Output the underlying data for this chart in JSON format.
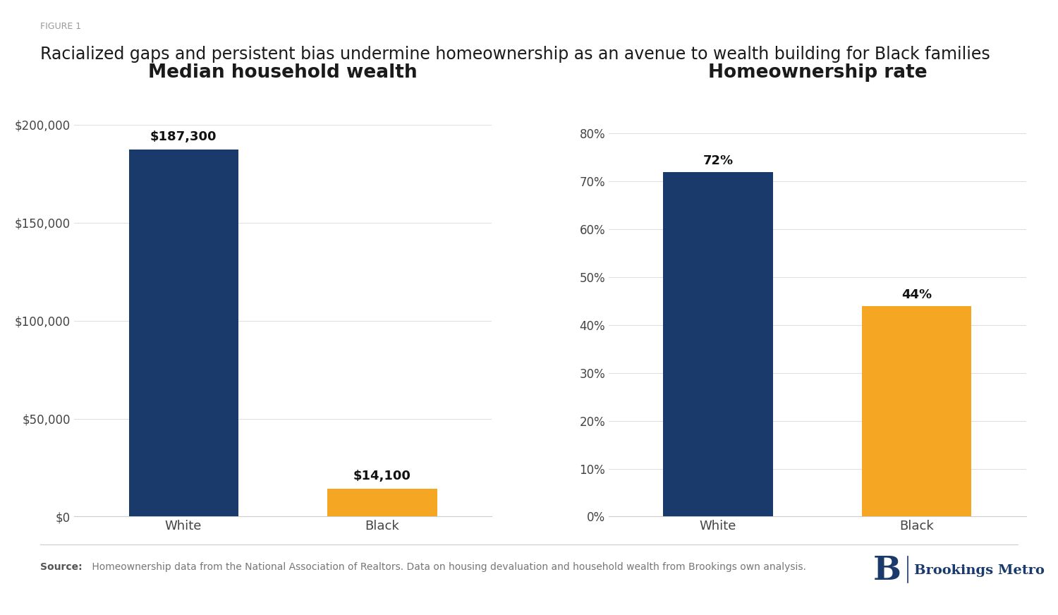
{
  "figure_label": "FIGURE 1",
  "title": "Racialized gaps and persistent bias undermine homeownership as an avenue to wealth building for Black families",
  "chart1_title": "Median household wealth",
  "chart2_title": "Homeownership rate",
  "chart1_categories": [
    "White",
    "Black"
  ],
  "chart1_values": [
    187300,
    14100
  ],
  "chart1_labels": [
    "$187,300",
    "$14,100"
  ],
  "chart1_colors": [
    "#1a3a6b",
    "#f5a623"
  ],
  "chart1_ylim": [
    0,
    215000
  ],
  "chart1_yticks": [
    0,
    50000,
    100000,
    150000,
    200000
  ],
  "chart1_yticklabels": [
    "$0",
    "$50,000",
    "$100,000",
    "$150,000",
    "$200,000"
  ],
  "chart2_categories": [
    "White",
    "Black"
  ],
  "chart2_values": [
    0.72,
    0.44
  ],
  "chart2_labels": [
    "72%",
    "44%"
  ],
  "chart2_colors": [
    "#1a3a6b",
    "#f5a623"
  ],
  "chart2_ylim": [
    0,
    0.88
  ],
  "chart2_yticks": [
    0,
    0.1,
    0.2,
    0.3,
    0.4,
    0.5,
    0.6,
    0.7,
    0.8
  ],
  "chart2_yticklabels": [
    "0%",
    "10%",
    "20%",
    "30%",
    "40%",
    "50%",
    "60%",
    "70%",
    "80%"
  ],
  "source_bold": "Source:",
  "source_text": " Homeownership data from the National Association of Realtors. Data on housing devaluation and household wealth from Brookings own analysis.",
  "brookings_letter": "B",
  "brookings_text": "Brookings Metro",
  "background_color": "#ffffff",
  "bar_width": 0.55,
  "title_color": "#1a1a1a",
  "tick_color": "#444444",
  "annotation_fontsize": 13,
  "chart_title_fontsize": 19,
  "tick_fontsize": 12,
  "source_fontsize": 10,
  "figure_label_fontsize": 9,
  "main_title_fontsize": 17
}
